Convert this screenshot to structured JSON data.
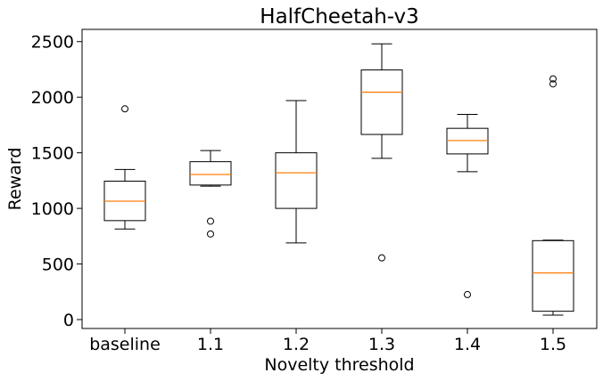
{
  "chart_data": {
    "type": "box",
    "title": "HalfCheetah-v3",
    "xlabel": "Novelty threshold",
    "ylabel": "Reward",
    "ylim": [
      -80,
      2610
    ],
    "yticks": [
      0,
      500,
      1000,
      1500,
      2000,
      2500
    ],
    "categories": [
      "baseline",
      "1.1",
      "1.2",
      "1.3",
      "1.4",
      "1.5"
    ],
    "boxes": [
      {
        "whisker_low": 815,
        "q1": 890,
        "median": 1065,
        "q3": 1245,
        "whisker_high": 1350,
        "outliers": [
          1895
        ]
      },
      {
        "whisker_low": 1200,
        "q1": 1210,
        "median": 1305,
        "q3": 1420,
        "whisker_high": 1520,
        "outliers": [
          885,
          770
        ]
      },
      {
        "whisker_low": 690,
        "q1": 1000,
        "median": 1320,
        "q3": 1500,
        "whisker_high": 1970,
        "outliers": []
      },
      {
        "whisker_low": 1450,
        "q1": 1665,
        "median": 2045,
        "q3": 2245,
        "whisker_high": 2480,
        "outliers": [
          555
        ]
      },
      {
        "whisker_low": 1330,
        "q1": 1490,
        "median": 1610,
        "q3": 1720,
        "whisker_high": 1845,
        "outliers": [
          225
        ]
      },
      {
        "whisker_low": 40,
        "q1": 75,
        "median": 420,
        "q3": 710,
        "whisker_high": 715,
        "outliers": [
          2165,
          2120
        ]
      }
    ],
    "colors": {
      "box": "#000000",
      "median": "#ff7f0e"
    },
    "grid": false
  }
}
